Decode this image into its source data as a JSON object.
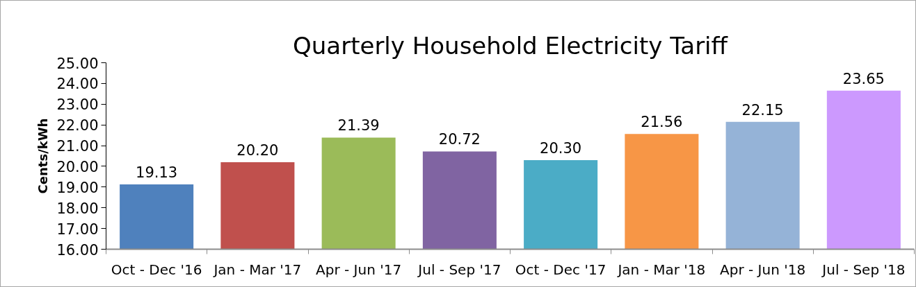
{
  "chart_data": {
    "type": "bar",
    "title": "Quarterly Household Electricity Tariff",
    "ylabel": "Cents/kWh",
    "categories": [
      "Oct - Dec '16",
      "Jan - Mar '17",
      "Apr - Jun '17",
      "Jul - Sep '17",
      "Oct - Dec '17",
      "Jan - Mar '18",
      "Apr - Jun '18",
      "Jul - Sep '18"
    ],
    "values": [
      19.13,
      20.2,
      21.39,
      20.72,
      20.3,
      21.56,
      22.15,
      23.65
    ],
    "value_labels": [
      "19.13",
      "20.20",
      "21.39",
      "20.72",
      "20.30",
      "21.56",
      "22.15",
      "23.65"
    ],
    "colors": [
      "#4f81bd",
      "#c0504d",
      "#9bbb59",
      "#8064a2",
      "#4bacc6",
      "#f79646",
      "#95b3d7",
      "#cc99fe"
    ],
    "ylim": [
      16,
      25
    ],
    "yticks": [
      {
        "value": 16,
        "label": "16.00"
      },
      {
        "value": 17,
        "label": "17.00"
      },
      {
        "value": 18,
        "label": "18.00"
      },
      {
        "value": 19,
        "label": "19.00"
      },
      {
        "value": 20,
        "label": "20.00"
      },
      {
        "value": 21,
        "label": "21.00"
      },
      {
        "value": 22,
        "label": "22.00"
      },
      {
        "value": 23,
        "label": "23.00"
      },
      {
        "value": 24,
        "label": "24.00"
      },
      {
        "value": 25,
        "label": "25.00"
      }
    ]
  }
}
